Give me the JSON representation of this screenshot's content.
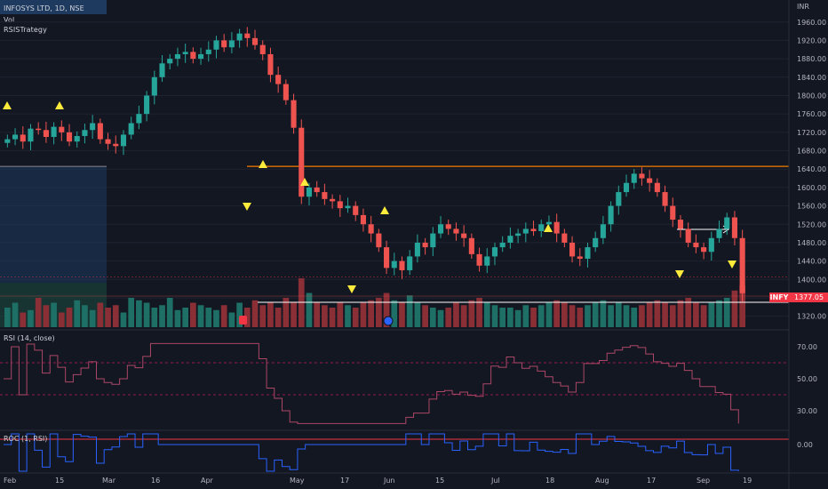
{
  "header": {
    "symbol_line": "INFOSYS LTD, 1D, NSE",
    "vol_label": "Vol",
    "strategy_label": "RSISTrategy",
    "currency": "INR"
  },
  "rsi_pane": {
    "label": "RSI (14, close)"
  },
  "roc_pane": {
    "label": "ROC (1, RSI)"
  },
  "price_tag": {
    "symbol": "INFY",
    "value": "1377.05",
    "color": "#f23645"
  },
  "colors": {
    "up": "#26a69a",
    "down": "#ef5350",
    "rsi": "#ab4766",
    "roc": "#2962ff",
    "level": "#f57c00"
  },
  "chart_data": {
    "type": "candlestick",
    "x_tick_labels": [
      "Feb",
      "15",
      "Mar",
      "16",
      "Apr",
      "May",
      "17",
      "Jun",
      "15",
      "Jul",
      "18",
      "Aug",
      "17",
      "Sep",
      "19"
    ],
    "price_ticks": [
      "1960.00",
      "1920.00",
      "1880.00",
      "1840.00",
      "1800.00",
      "1760.00",
      "1720.00",
      "1680.00",
      "1640.00",
      "1600.00",
      "1560.00",
      "1520.00",
      "1480.00",
      "1440.00",
      "1400.00",
      "1360.00",
      "1320.00"
    ],
    "price_range": [
      1300,
      1975
    ],
    "horizontal_levels": [
      1646,
      1358
    ],
    "closes": [
      1705,
      1715,
      1700,
      1728,
      1725,
      1710,
      1732,
      1720,
      1700,
      1712,
      1725,
      1740,
      1705,
      1695,
      1690,
      1715,
      1740,
      1760,
      1800,
      1840,
      1870,
      1880,
      1890,
      1895,
      1880,
      1890,
      1900,
      1920,
      1905,
      1920,
      1935,
      1925,
      1910,
      1890,
      1845,
      1825,
      1790,
      1730,
      1580,
      1600,
      1590,
      1575,
      1570,
      1555,
      1560,
      1540,
      1520,
      1500,
      1470,
      1425,
      1440,
      1420,
      1450,
      1480,
      1470,
      1500,
      1520,
      1510,
      1500,
      1490,
      1455,
      1430,
      1450,
      1470,
      1480,
      1495,
      1500,
      1510,
      1505,
      1520,
      1525,
      1500,
      1480,
      1450,
      1445,
      1470,
      1490,
      1520,
      1560,
      1590,
      1610,
      1630,
      1620,
      1610,
      1590,
      1560,
      1530,
      1510,
      1480,
      1470,
      1460,
      1490,
      1510,
      1535,
      1490,
      1370
    ],
    "volume_scale": [
      0.4,
      0.5,
      0.3,
      0.35,
      0.6,
      0.45,
      0.5,
      0.3,
      0.4,
      0.55,
      0.45,
      0.35,
      0.5,
      0.4,
      0.45,
      0.3,
      0.6,
      0.55,
      0.5,
      0.4,
      0.45,
      0.6,
      0.35,
      0.4,
      0.5,
      0.45,
      0.4,
      0.35,
      0.45,
      0.3,
      0.5,
      0.4,
      0.55,
      0.45,
      0.5,
      0.4,
      0.6,
      0.5,
      1.0,
      0.7,
      0.5,
      0.45,
      0.4,
      0.5,
      0.45,
      0.4,
      0.5,
      0.55,
      0.6,
      0.7,
      0.55,
      0.5,
      0.65,
      0.5,
      0.45,
      0.4,
      0.35,
      0.4,
      0.5,
      0.45,
      0.55,
      0.6,
      0.5,
      0.45,
      0.4,
      0.4,
      0.35,
      0.45,
      0.4,
      0.45,
      0.5,
      0.55,
      0.5,
      0.45,
      0.4,
      0.45,
      0.5,
      0.55,
      0.45,
      0.5,
      0.45,
      0.4,
      0.45,
      0.5,
      0.55,
      0.5,
      0.45,
      0.55,
      0.6,
      0.5,
      0.45,
      0.5,
      0.55,
      0.6,
      0.75,
      0.85
    ],
    "rsi": {
      "range": [
        20,
        75
      ],
      "levels": [
        60,
        40
      ],
      "ticks": [
        "70.00",
        "50.00",
        "30.00"
      ]
    },
    "roc": {
      "range": [
        -25,
        10
      ],
      "level": 3,
      "ticks": [
        "0.00"
      ]
    }
  }
}
